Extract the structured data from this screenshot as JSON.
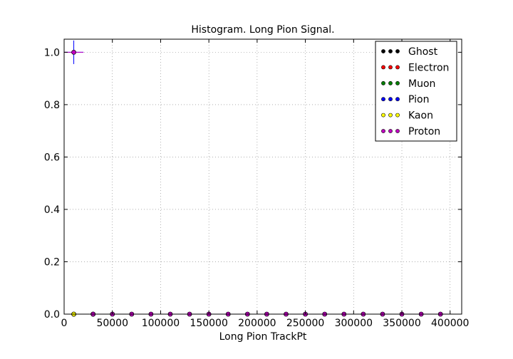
{
  "chart_data": {
    "type": "scatter",
    "title": "Histogram. Long Pion Signal.",
    "xlabel": "Long Pion TrackPt",
    "ylabel": "",
    "xlim": [
      0,
      412000
    ],
    "ylim": [
      0,
      1.05
    ],
    "x_ticks": [
      0,
      50000,
      100000,
      150000,
      200000,
      250000,
      300000,
      350000,
      400000
    ],
    "x_tick_labels": [
      "0",
      "50000",
      "100000",
      "150000",
      "200000",
      "250000",
      "300000",
      "350000",
      "400000"
    ],
    "y_ticks": [
      0.0,
      0.2,
      0.4,
      0.6,
      0.8,
      1.0
    ],
    "y_tick_labels": [
      "0.0",
      "0.2",
      "0.4",
      "0.6",
      "0.8",
      "1.0"
    ],
    "grid": true,
    "legend_position": "top-right",
    "bin_half_width": 10000,
    "series": [
      {
        "name": "Ghost",
        "color": "#000000",
        "x": [
          10000,
          30000
        ],
        "y": [
          0.0,
          0.0
        ],
        "yerr": [
          0.0,
          0.0
        ]
      },
      {
        "name": "Electron",
        "color": "#ff0000",
        "x": [
          10000,
          30000
        ],
        "y": [
          0.0,
          0.0
        ],
        "yerr": [
          0.0,
          0.0
        ]
      },
      {
        "name": "Muon",
        "color": "#008000",
        "x": [
          10000,
          30000
        ],
        "y": [
          0.0,
          0.0
        ],
        "yerr": [
          0.0,
          0.0
        ]
      },
      {
        "name": "Pion",
        "color": "#0000ff",
        "x": [
          10000,
          30000,
          50000,
          70000,
          90000,
          110000,
          130000,
          150000,
          170000,
          190000,
          210000,
          230000,
          250000,
          270000,
          290000,
          310000,
          330000,
          350000,
          370000,
          390000
        ],
        "y": [
          1.0,
          0.0,
          0.0,
          0.0,
          0.0,
          0.0,
          0.0,
          0.0,
          0.0,
          0.0,
          0.0,
          0.0,
          0.0,
          0.0,
          0.0,
          0.0,
          0.0,
          0.0,
          0.0,
          0.0
        ],
        "yerr": [
          0.045,
          0.0,
          0.0,
          0.0,
          0.0,
          0.0,
          0.0,
          0.0,
          0.0,
          0.0,
          0.0,
          0.0,
          0.0,
          0.0,
          0.0,
          0.0,
          0.0,
          0.0,
          0.0,
          0.0
        ]
      },
      {
        "name": "Kaon",
        "color": "#ffff00",
        "x": [
          10000,
          30000
        ],
        "y": [
          0.0,
          0.0
        ],
        "yerr": [
          0.0,
          0.0
        ]
      },
      {
        "name": "Proton",
        "color": "#bf00bf",
        "x": [
          10000,
          30000,
          50000,
          70000,
          90000,
          110000,
          130000,
          150000,
          170000,
          190000,
          210000,
          230000,
          250000,
          270000,
          290000,
          310000,
          330000,
          350000,
          370000,
          390000
        ],
        "y": [
          1.0,
          0.0,
          0.0,
          0.0,
          0.0,
          0.0,
          0.0,
          0.0,
          0.0,
          0.0,
          0.0,
          0.0,
          0.0,
          0.0,
          0.0,
          0.0,
          0.0,
          0.0,
          0.0,
          0.0
        ],
        "yerr": [
          0.0,
          0.0,
          0.0,
          0.0,
          0.0,
          0.0,
          0.0,
          0.0,
          0.0,
          0.0,
          0.0,
          0.0,
          0.0,
          0.0,
          0.0,
          0.0,
          0.0,
          0.0,
          0.0,
          0.0
        ]
      }
    ]
  }
}
